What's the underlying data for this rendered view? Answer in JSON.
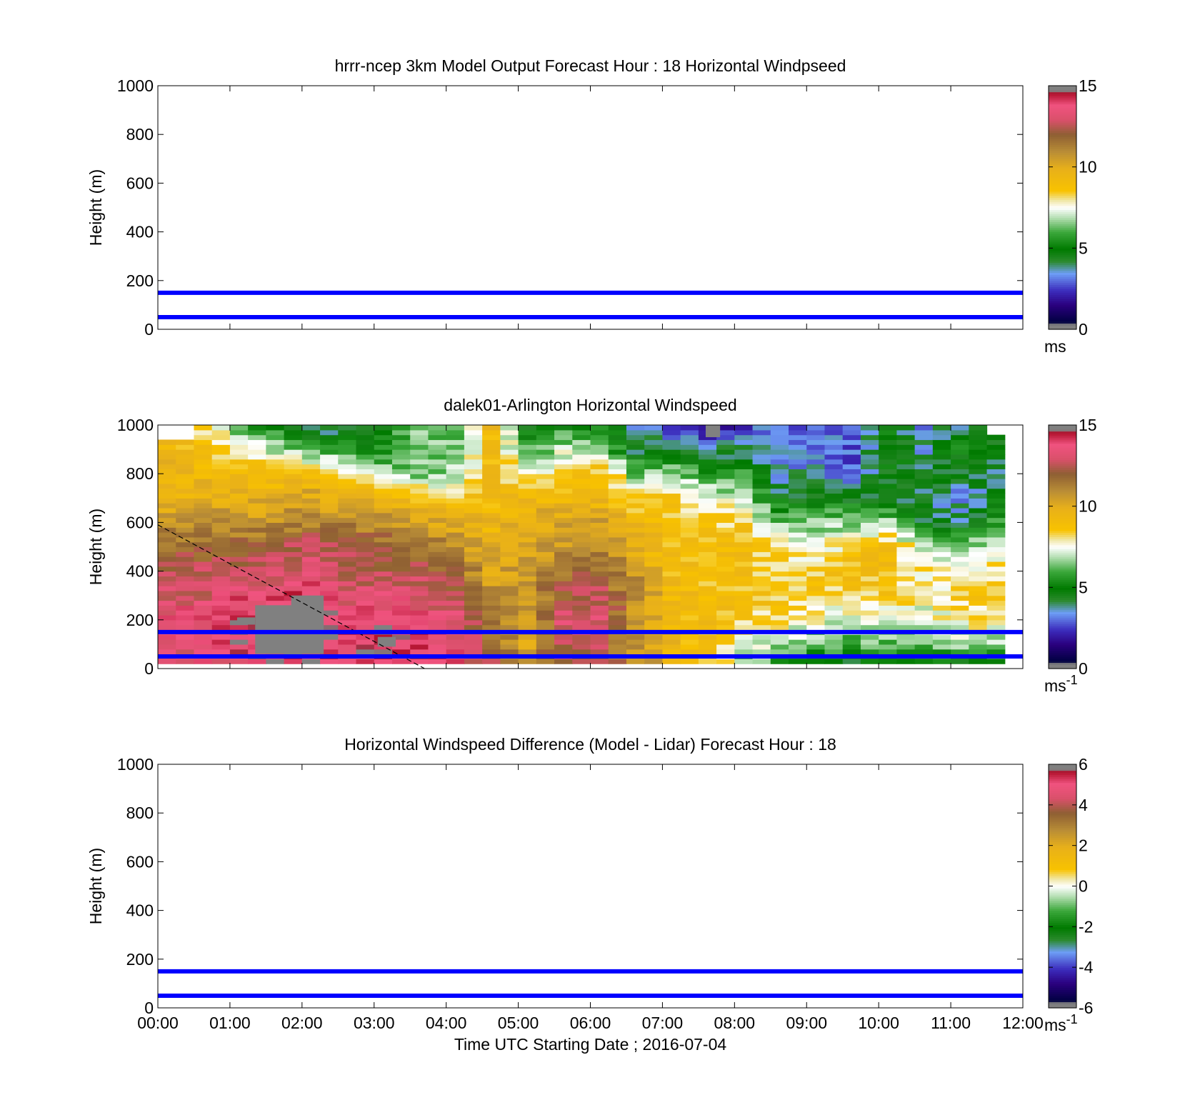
{
  "figure": {
    "x_tick_labels": [
      "00:00",
      "01:00",
      "02:00",
      "03:00",
      "04:00",
      "05:00",
      "06:00",
      "07:00",
      "08:00",
      "09:00",
      "10:00",
      "11:00",
      "12:00"
    ],
    "y_tick_labels": [
      "0",
      "200",
      "400",
      "600",
      "800",
      "1000"
    ],
    "xlabel": "Time UTC  Starting Date ; 2016-07-04",
    "line_color": "#0000ff"
  },
  "chart_data": [
    {
      "type": "heatmap",
      "title": "hrrr-ncep 3km Model Output   Forecast Hour : 18 Horizontal Windpseed",
      "ylabel": "Height (m)",
      "xlabel": "",
      "xlim_hours": [
        0,
        12
      ],
      "ylim": [
        0,
        1000
      ],
      "data_present": false,
      "reference_lines_m": [
        150,
        50
      ],
      "colorbar": {
        "range": [
          0,
          15
        ],
        "tick_labels": [
          "0",
          "5",
          "10",
          "15"
        ],
        "tick_values": [
          0,
          5,
          10,
          15
        ],
        "unit_label": "ms",
        "unit_sup": "",
        "colormap": "speed"
      }
    },
    {
      "type": "heatmap",
      "title": "dalek01-Arlington  Horizontal Windspeed",
      "ylabel": "Height (m)",
      "xlabel": "",
      "xlim_hours": [
        0,
        12
      ],
      "ylim": [
        0,
        1000
      ],
      "data_present": true,
      "time_start_hours": 0,
      "time_step_hours": 0.25,
      "height_step_m": 20,
      "height_bottom_m": 20,
      "max_height_profile_m": [
        940,
        940,
        1000,
        1000,
        1000,
        1000,
        1000,
        1000,
        1000,
        1000,
        1000,
        1000,
        1000,
        1000,
        1000,
        1000,
        1000,
        1000,
        1000,
        1000,
        1000,
        1000,
        1000,
        1000,
        1000,
        1000,
        1000,
        1000,
        1000,
        1000,
        1000,
        1000,
        1000,
        1000,
        1000,
        1000,
        1000,
        1000,
        1000,
        1000,
        1000,
        1000,
        1000,
        1000,
        1000,
        1000,
        960
      ],
      "speed_profile_knots_m": [
        0,
        100,
        200,
        300,
        400,
        500,
        600,
        700,
        800,
        900,
        1000
      ],
      "speed_profiles_ms": [
        [
          13.0,
          13.5,
          14.0,
          13.5,
          13.0,
          12.0,
          11.0,
          10.0,
          9.5,
          9.5,
          9.5
        ],
        [
          13.5,
          14.0,
          14.0,
          13.5,
          13.0,
          12.0,
          11.0,
          10.0,
          9.5,
          9.0,
          8.0
        ],
        [
          14.0,
          14.5,
          14.5,
          14.0,
          13.0,
          12.0,
          11.0,
          10.0,
          9.5,
          8.0,
          6.0
        ],
        [
          14.5,
          14.5,
          14.5,
          14.0,
          13.5,
          12.5,
          11.0,
          10.0,
          9.0,
          7.0,
          5.0
        ],
        [
          14.5,
          15.0,
          15.0,
          14.5,
          13.5,
          13.0,
          11.5,
          10.5,
          9.0,
          6.0,
          3.0
        ],
        [
          14.0,
          14.5,
          14.0,
          13.5,
          13.0,
          12.5,
          11.5,
          10.0,
          8.0,
          5.5,
          4.0
        ],
        [
          14.5,
          15.0,
          14.5,
          13.5,
          13.0,
          12.5,
          11.0,
          9.5,
          7.0,
          5.0,
          5.0
        ],
        [
          14.0,
          14.5,
          14.0,
          13.5,
          13.0,
          12.0,
          10.5,
          9.0,
          6.5,
          6.0,
          6.5
        ],
        [
          14.0,
          14.0,
          13.5,
          13.0,
          12.0,
          11.0,
          10.0,
          8.5,
          7.0,
          6.5,
          6.0
        ],
        [
          12.5,
          12.0,
          11.5,
          11.0,
          10.5,
          10.0,
          9.5,
          9.0,
          9.0,
          9.0,
          9.5
        ],
        [
          10.5,
          10.5,
          10.5,
          11.0,
          11.0,
          10.5,
          10.0,
          9.5,
          8.0,
          6.0,
          4.5
        ],
        [
          12.5,
          13.0,
          13.5,
          12.5,
          12.0,
          11.0,
          10.5,
          9.5,
          8.5,
          7.0,
          5.0
        ],
        [
          12.0,
          13.0,
          13.5,
          13.0,
          12.0,
          11.5,
          10.5,
          9.5,
          9.0,
          7.0,
          5.0
        ],
        [
          11.5,
          11.0,
          10.5,
          11.0,
          11.0,
          10.0,
          9.5,
          8.5,
          6.5,
          4.0,
          3.0
        ],
        [
          10.0,
          9.5,
          9.5,
          9.5,
          9.0,
          9.0,
          9.0,
          8.5,
          7.0,
          4.0,
          2.0
        ],
        [
          9.0,
          9.0,
          9.0,
          9.0,
          9.0,
          9.0,
          8.5,
          7.5,
          5.5,
          3.0,
          1.5
        ],
        [
          6.0,
          7.5,
          8.5,
          9.0,
          9.0,
          9.0,
          8.5,
          7.0,
          5.5,
          4.0,
          2.0
        ],
        [
          5.0,
          7.0,
          8.0,
          8.5,
          8.5,
          8.0,
          6.5,
          4.5,
          3.0,
          3.5,
          3.0
        ],
        [
          4.0,
          6.0,
          7.5,
          8.5,
          8.5,
          7.5,
          6.5,
          4.5,
          3.5,
          3.0,
          2.0
        ],
        [
          4.0,
          6.0,
          7.0,
          8.5,
          9.0,
          8.5,
          6.5,
          4.5,
          2.5,
          2.5,
          3.0
        ],
        [
          4.0,
          6.0,
          7.5,
          8.5,
          9.0,
          9.0,
          7.0,
          4.0,
          4.5,
          5.0,
          4.5
        ],
        [
          3.5,
          6.0,
          7.0,
          8.0,
          8.0,
          7.0,
          4.5,
          4.0,
          4.5,
          3.5,
          3.0
        ],
        [
          4.0,
          6.5,
          8.0,
          8.5,
          8.0,
          6.5,
          4.0,
          3.0,
          4.5,
          5.0,
          4.0
        ],
        [
          4.0,
          6.5,
          8.0,
          8.5,
          8.0,
          7.5,
          5.5,
          4.5,
          3.5,
          4.5,
          5.0
        ]
      ],
      "masked_regions": [
        {
          "t0": 1.1,
          "t1": 1.35,
          "h0": 180,
          "h1": 210
        },
        {
          "t0": 1.35,
          "t1": 1.9,
          "h0": 60,
          "h1": 260
        },
        {
          "t0": 1.85,
          "t1": 2.3,
          "h0": 60,
          "h1": 300
        },
        {
          "t0": 3.05,
          "t1": 3.3,
          "h0": 90,
          "h1": 130
        },
        {
          "t0": 7.6,
          "t1": 7.8,
          "h0": 950,
          "h1": 1000
        }
      ],
      "diagonal_line": {
        "t0": 0.0,
        "h0": 590,
        "t1": 3.7,
        "h1": 0
      },
      "reference_lines_m": [
        150,
        50
      ],
      "colorbar": {
        "range": [
          0,
          15
        ],
        "tick_labels": [
          "0",
          "5",
          "10",
          "15"
        ],
        "tick_values": [
          0,
          5,
          10,
          15
        ],
        "unit_label": "ms",
        "unit_sup": "-1",
        "colormap": "speed"
      }
    },
    {
      "type": "heatmap",
      "title": "Horizontal Windspeed Difference (Model - Lidar) Forecast Hour : 18",
      "ylabel": "Height (m)",
      "xlabel": "Time UTC  Starting Date ; 2016-07-04",
      "xlim_hours": [
        0,
        12
      ],
      "ylim": [
        0,
        1000
      ],
      "data_present": false,
      "reference_lines_m": [
        150,
        50
      ],
      "colorbar": {
        "range": [
          -6,
          6
        ],
        "tick_labels": [
          "-6",
          "-4",
          "-2",
          "0",
          "2",
          "4",
          "6"
        ],
        "tick_values": [
          -6,
          -4,
          -2,
          0,
          2,
          4,
          6
        ],
        "unit_label": "ms",
        "unit_sup": "-1",
        "colormap": "diff"
      }
    }
  ],
  "colormap_stops": {
    "speed": [
      [
        0.0,
        "#808080"
      ],
      [
        0.02,
        "#808080"
      ],
      [
        0.03,
        "#000040"
      ],
      [
        0.1,
        "#2a007e"
      ],
      [
        0.16,
        "#3c2dbd"
      ],
      [
        0.23,
        "#6e9ef5"
      ],
      [
        0.28,
        "#2b8a2d"
      ],
      [
        0.33,
        "#007a00"
      ],
      [
        0.4,
        "#3ca83c"
      ],
      [
        0.46,
        "#b7e0b5"
      ],
      [
        0.5,
        "#ffffff"
      ],
      [
        0.53,
        "#f0e7a6"
      ],
      [
        0.57,
        "#f8c200"
      ],
      [
        0.66,
        "#e8b01a"
      ],
      [
        0.73,
        "#b98d36"
      ],
      [
        0.8,
        "#8e5f33"
      ],
      [
        0.86,
        "#d9506a"
      ],
      [
        0.92,
        "#f0537f"
      ],
      [
        0.97,
        "#b0102c"
      ],
      [
        0.98,
        "#808080"
      ],
      [
        1.0,
        "#808080"
      ]
    ],
    "diff": [
      [
        0.0,
        "#808080"
      ],
      [
        0.02,
        "#808080"
      ],
      [
        0.03,
        "#000040"
      ],
      [
        0.1,
        "#2a007e"
      ],
      [
        0.16,
        "#3c2dbd"
      ],
      [
        0.23,
        "#6e9ef5"
      ],
      [
        0.28,
        "#2b8a2d"
      ],
      [
        0.33,
        "#007a00"
      ],
      [
        0.4,
        "#3ca83c"
      ],
      [
        0.46,
        "#b7e0b5"
      ],
      [
        0.5,
        "#ffffff"
      ],
      [
        0.53,
        "#f0e7a6"
      ],
      [
        0.57,
        "#f8c200"
      ],
      [
        0.66,
        "#e8b01a"
      ],
      [
        0.73,
        "#b98d36"
      ],
      [
        0.8,
        "#8e5f33"
      ],
      [
        0.86,
        "#d9506a"
      ],
      [
        0.92,
        "#f0537f"
      ],
      [
        0.97,
        "#b0102c"
      ],
      [
        0.98,
        "#808080"
      ],
      [
        1.0,
        "#808080"
      ]
    ]
  }
}
